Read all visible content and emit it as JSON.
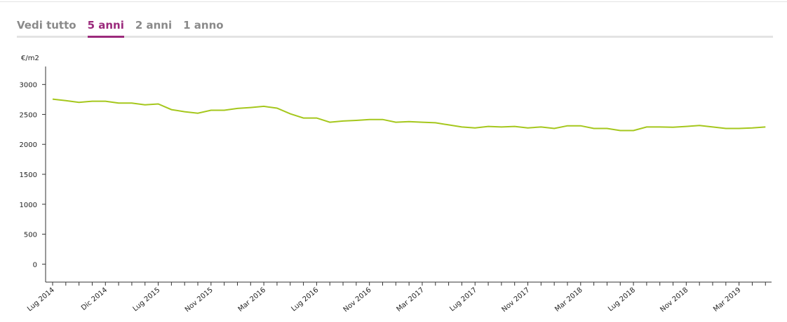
{
  "tabs": [
    "Vedi tutto",
    "5 anni",
    "2 anni",
    "1 anno"
  ],
  "chart_data": {
    "type": "line",
    "y_label": "€/m2",
    "categories": [
      "Lug 2014",
      null,
      null,
      null,
      "Dic 2014",
      null,
      null,
      null,
      "Lug 2015",
      null,
      null,
      null,
      "Nov 2015",
      null,
      null,
      null,
      "Mar 2016",
      null,
      null,
      null,
      "Lug 2016",
      null,
      null,
      null,
      "Nov 2016",
      null,
      null,
      null,
      "Mar 2017",
      null,
      null,
      null,
      "Lug 2017",
      null,
      null,
      null,
      "Nov 2017",
      null,
      null,
      null,
      "Mar 2018",
      null,
      null,
      null,
      "Lug 2018",
      null,
      null,
      null,
      "Nov 2018",
      null,
      null,
      null,
      "Mar 2019",
      null,
      null
    ],
    "values": [
      2755,
      2730,
      2700,
      2720,
      2720,
      2690,
      2690,
      2660,
      2675,
      2580,
      2545,
      2520,
      2570,
      2570,
      2600,
      2615,
      2635,
      2605,
      2510,
      2440,
      2440,
      2370,
      2390,
      2400,
      2415,
      2415,
      2370,
      2380,
      2370,
      2360,
      2325,
      2290,
      2275,
      2300,
      2290,
      2300,
      2275,
      2290,
      2265,
      2310,
      2310,
      2265,
      2265,
      2230,
      2230,
      2290,
      2290,
      2285,
      2300,
      2315,
      2290,
      2265,
      2265,
      2275,
      2290
    ],
    "color": "#a5c71c",
    "ylim": [
      -300,
      3300
    ],
    "yticks": [
      0,
      500,
      1000,
      1500,
      2000,
      2500,
      3000
    ]
  }
}
